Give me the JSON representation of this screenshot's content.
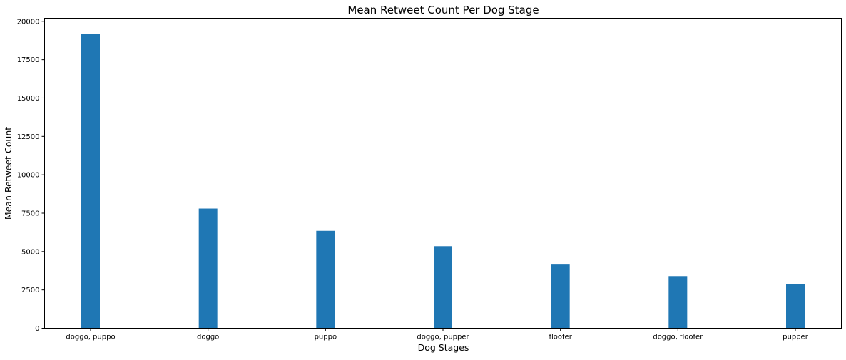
{
  "chart_data": {
    "type": "bar",
    "title": "Mean Retweet Count Per Dog Stage",
    "xlabel": "Dog Stages",
    "ylabel": "Mean Retweet Count",
    "categories": [
      "doggo, puppo",
      "doggo",
      "puppo",
      "doggo, pupper",
      "floofer",
      "doggo, floofer",
      "pupper"
    ],
    "values": [
      19200,
      7800,
      6350,
      5350,
      4150,
      3400,
      2900
    ],
    "ylim": [
      0,
      20200
    ],
    "yticks": [
      0,
      2500,
      5000,
      7500,
      10000,
      12500,
      15000,
      17500,
      20000
    ],
    "ytick_labels": [
      "0",
      "2500",
      "5000",
      "7500",
      "10000",
      "12500",
      "15000",
      "17500",
      "20000"
    ],
    "bar_color": "#1f77b4",
    "grid": false,
    "legend": "none"
  }
}
